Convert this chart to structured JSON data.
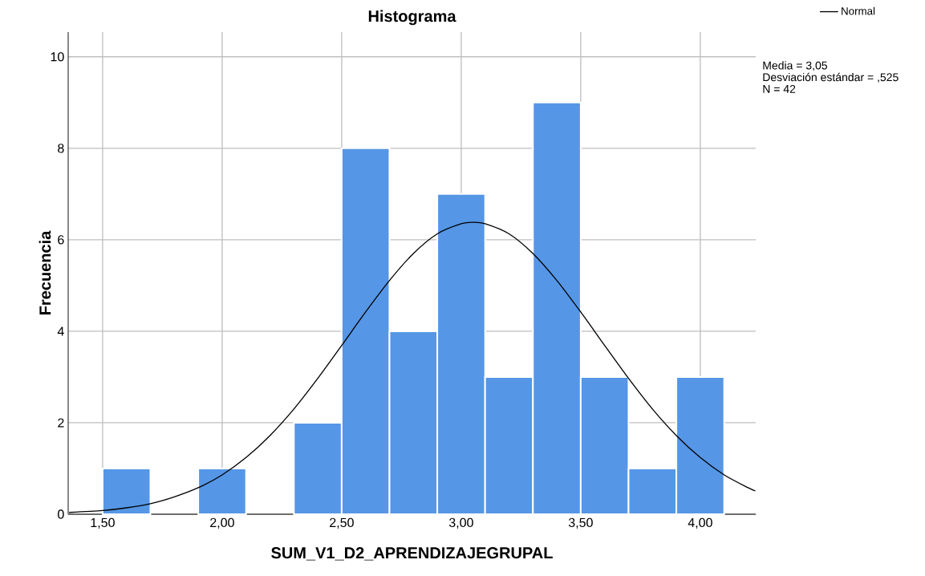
{
  "chart_data": {
    "type": "histogram",
    "title": "Histograma",
    "xlabel": "SUM_V1_D2_APRENDIZAJEGRUPAL",
    "ylabel": "Frecuencia",
    "bins": [
      1.5,
      1.7,
      1.9,
      2.1,
      2.3,
      2.5,
      2.7,
      2.9,
      3.1,
      3.3,
      3.5,
      3.7,
      3.9,
      4.1
    ],
    "values": [
      1,
      0,
      1,
      0,
      2,
      8,
      4,
      7,
      3,
      9,
      3,
      1,
      3
    ],
    "color": "#5596e6",
    "series": [
      {
        "name": "Normal",
        "type": "line",
        "color": "#000000",
        "x": [
          1.36,
          1.5,
          1.6,
          1.7,
          1.8,
          1.9,
          2.0,
          2.1,
          2.2,
          2.3,
          2.4,
          2.5,
          2.6,
          2.7,
          2.8,
          2.9,
          3.0,
          3.05,
          3.1,
          3.2,
          3.3,
          3.4,
          3.5,
          3.6,
          3.7,
          3.8,
          3.9,
          4.0,
          4.1,
          4.2,
          4.23
        ],
        "values": [
          0.04,
          0.08,
          0.14,
          0.23,
          0.38,
          0.58,
          0.86,
          1.24,
          1.72,
          2.3,
          2.97,
          3.69,
          4.42,
          5.11,
          5.7,
          6.13,
          6.35,
          6.38,
          6.35,
          6.13,
          5.7,
          5.11,
          4.42,
          3.69,
          2.97,
          2.3,
          1.72,
          1.24,
          0.86,
          0.58,
          0.51
        ]
      }
    ],
    "xlim": [
      1.356,
      4.232
    ],
    "ylim": [
      0,
      10.54
    ],
    "xticks": [
      {
        "value": 1.5,
        "label": "1,50"
      },
      {
        "value": 2.0,
        "label": "2,00"
      },
      {
        "value": 2.5,
        "label": "2,50"
      },
      {
        "value": 3.0,
        "label": "3,00"
      },
      {
        "value": 3.5,
        "label": "3,50"
      },
      {
        "value": 4.0,
        "label": "4,00"
      }
    ],
    "yticks": [
      0,
      2,
      4,
      6,
      8,
      10
    ],
    "grid": true,
    "legend": "top right",
    "annotations": [
      "Media = 3,05",
      "Desviación estándar = ,525",
      "N = 42"
    ]
  }
}
